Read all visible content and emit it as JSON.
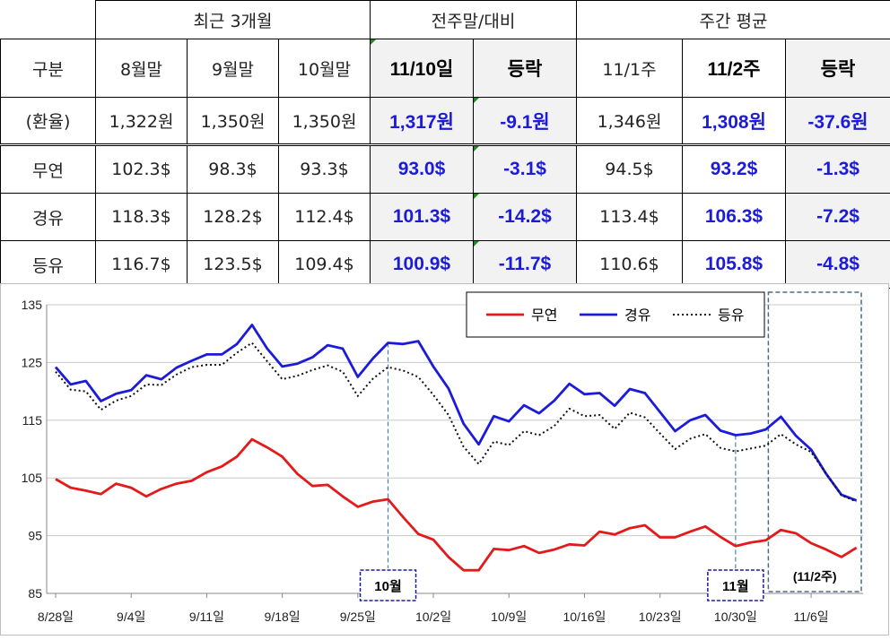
{
  "table": {
    "group_headers": [
      "최근 3개월",
      "전주말/대비",
      "주간 평균"
    ],
    "label_header": "구분",
    "sub_headers": [
      "8월말",
      "9월말",
      "10월말",
      "11/10일",
      "등락",
      "11/1주",
      "11/2주",
      "등락"
    ],
    "rows": [
      {
        "label": "(환율)",
        "cells": [
          "1,322원",
          "1,350원",
          "1,350원",
          "1,317원",
          "-9.1원",
          "1,346원",
          "1,308원",
          "-37.6원"
        ]
      },
      {
        "label": "무연",
        "cells": [
          "102.3$",
          "98.3$",
          "93.3$",
          "93.0$",
          "-3.1$",
          "94.5$",
          "93.2$",
          "-1.3$"
        ]
      },
      {
        "label": "경유",
        "cells": [
          "118.3$",
          "128.2$",
          "112.4$",
          "101.3$",
          "-14.2$",
          "113.4$",
          "106.3$",
          "-7.2$"
        ]
      },
      {
        "label": "등유",
        "cells": [
          "116.7$",
          "123.5$",
          "109.4$",
          "100.9$",
          "-11.7$",
          "110.6$",
          "105.8$",
          "-4.8$"
        ]
      }
    ]
  },
  "chart_data": {
    "type": "line",
    "y_ticks": [
      135,
      125,
      115,
      105,
      95,
      85
    ],
    "ylim": [
      85,
      135
    ],
    "x_tick_labels": [
      "8/28일",
      "9/4일",
      "9/11일",
      "9/18일",
      "9/25일",
      "10/2일",
      "10/9일",
      "10/16일",
      "10/23일",
      "10/30일",
      "11/6일"
    ],
    "x_tick_index": [
      0,
      5,
      10,
      15,
      20,
      25,
      30,
      35,
      40,
      45,
      50
    ],
    "series": [
      {
        "name": "무연",
        "color": "#e31a1a",
        "style": "solid",
        "values": [
          104.8,
          103.3,
          102.8,
          102.2,
          104.0,
          103.3,
          101.8,
          103.1,
          104.0,
          104.5,
          106.0,
          107.0,
          108.7,
          111.7,
          110.3,
          108.7,
          105.7,
          103.6,
          103.8,
          101.8,
          100.0,
          100.9,
          101.3,
          98.2,
          95.3,
          94.3,
          91.3,
          89.0,
          89.0,
          92.7,
          92.5,
          93.2,
          92.0,
          92.6,
          93.5,
          93.3,
          95.7,
          95.2,
          96.3,
          96.8,
          94.7,
          94.7,
          95.7,
          96.6,
          94.8,
          93.2,
          93.8,
          94.2,
          96.0,
          95.4,
          93.7,
          92.6,
          91.3,
          92.9
        ]
      },
      {
        "name": "경유",
        "color": "#1c1cd8",
        "style": "solid",
        "values": [
          124.2,
          121.2,
          121.8,
          118.3,
          119.6,
          120.2,
          122.8,
          122.1,
          124.1,
          125.3,
          126.4,
          126.4,
          128.2,
          131.5,
          127.4,
          124.3,
          124.8,
          125.9,
          128.0,
          127.4,
          122.5,
          125.7,
          128.4,
          128.2,
          128.7,
          124.3,
          120.5,
          114.4,
          110.8,
          115.7,
          114.8,
          117.6,
          116.2,
          118.4,
          121.3,
          119.5,
          119.7,
          117.5,
          120.4,
          119.7,
          116.4,
          113.1,
          115.0,
          115.9,
          113.2,
          112.4,
          112.7,
          113.4,
          115.6,
          112.3,
          109.9,
          105.7,
          102.1,
          101.1
        ]
      },
      {
        "name": "등유",
        "color": "#111111",
        "style": "dotted",
        "values": [
          123.4,
          120.3,
          120.0,
          116.8,
          118.4,
          119.2,
          121.2,
          121.1,
          122.9,
          124.2,
          124.6,
          124.6,
          126.7,
          128.4,
          125.2,
          122.1,
          122.7,
          123.7,
          124.5,
          123.4,
          119.2,
          122.2,
          124.2,
          123.6,
          122.5,
          119.4,
          115.9,
          110.4,
          107.4,
          111.3,
          110.7,
          113.1,
          112.4,
          114.0,
          117.0,
          115.7,
          115.9,
          113.5,
          116.3,
          115.5,
          112.7,
          110.0,
          111.8,
          112.6,
          110.2,
          109.6,
          110.1,
          110.6,
          112.6,
          110.8,
          109.5,
          105.7,
          102.0,
          100.9
        ]
      }
    ],
    "annotations": [
      {
        "text": "10월",
        "index": 22
      },
      {
        "text": "11월",
        "index": 45
      },
      {
        "text": "(11/2주)",
        "start_index": 48,
        "end_index": 53
      }
    ],
    "legend_position": "top-right",
    "grid": true
  }
}
